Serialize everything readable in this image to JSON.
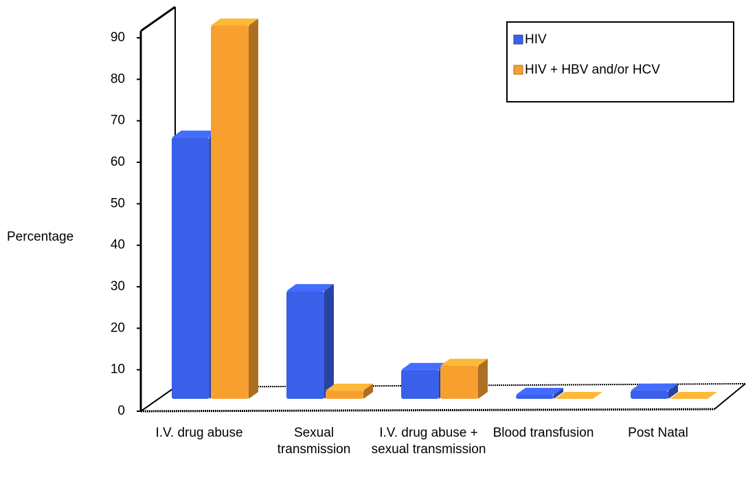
{
  "chart_data": {
    "type": "bar3d",
    "y_label": "Percentage",
    "categories": [
      "I.V. drug abuse",
      "Sexual transmission",
      "I.V. drug abuse + sexual transmission",
      "Blood transfusion",
      "Post Natal"
    ],
    "series": [
      {
        "name": "HIV",
        "color": "#3a5fe8",
        "values": [
          63,
          26,
          7,
          1,
          2
        ]
      },
      {
        "name": "HIV + HBV and/or HCV",
        "color": "#f7a030",
        "values": [
          90,
          2,
          8,
          0,
          0
        ]
      }
    ],
    "ylim": [
      0,
      90
    ],
    "yticks": [
      0,
      10,
      20,
      30,
      40,
      50,
      60,
      70,
      80,
      90
    ],
    "legend": "top-right"
  }
}
